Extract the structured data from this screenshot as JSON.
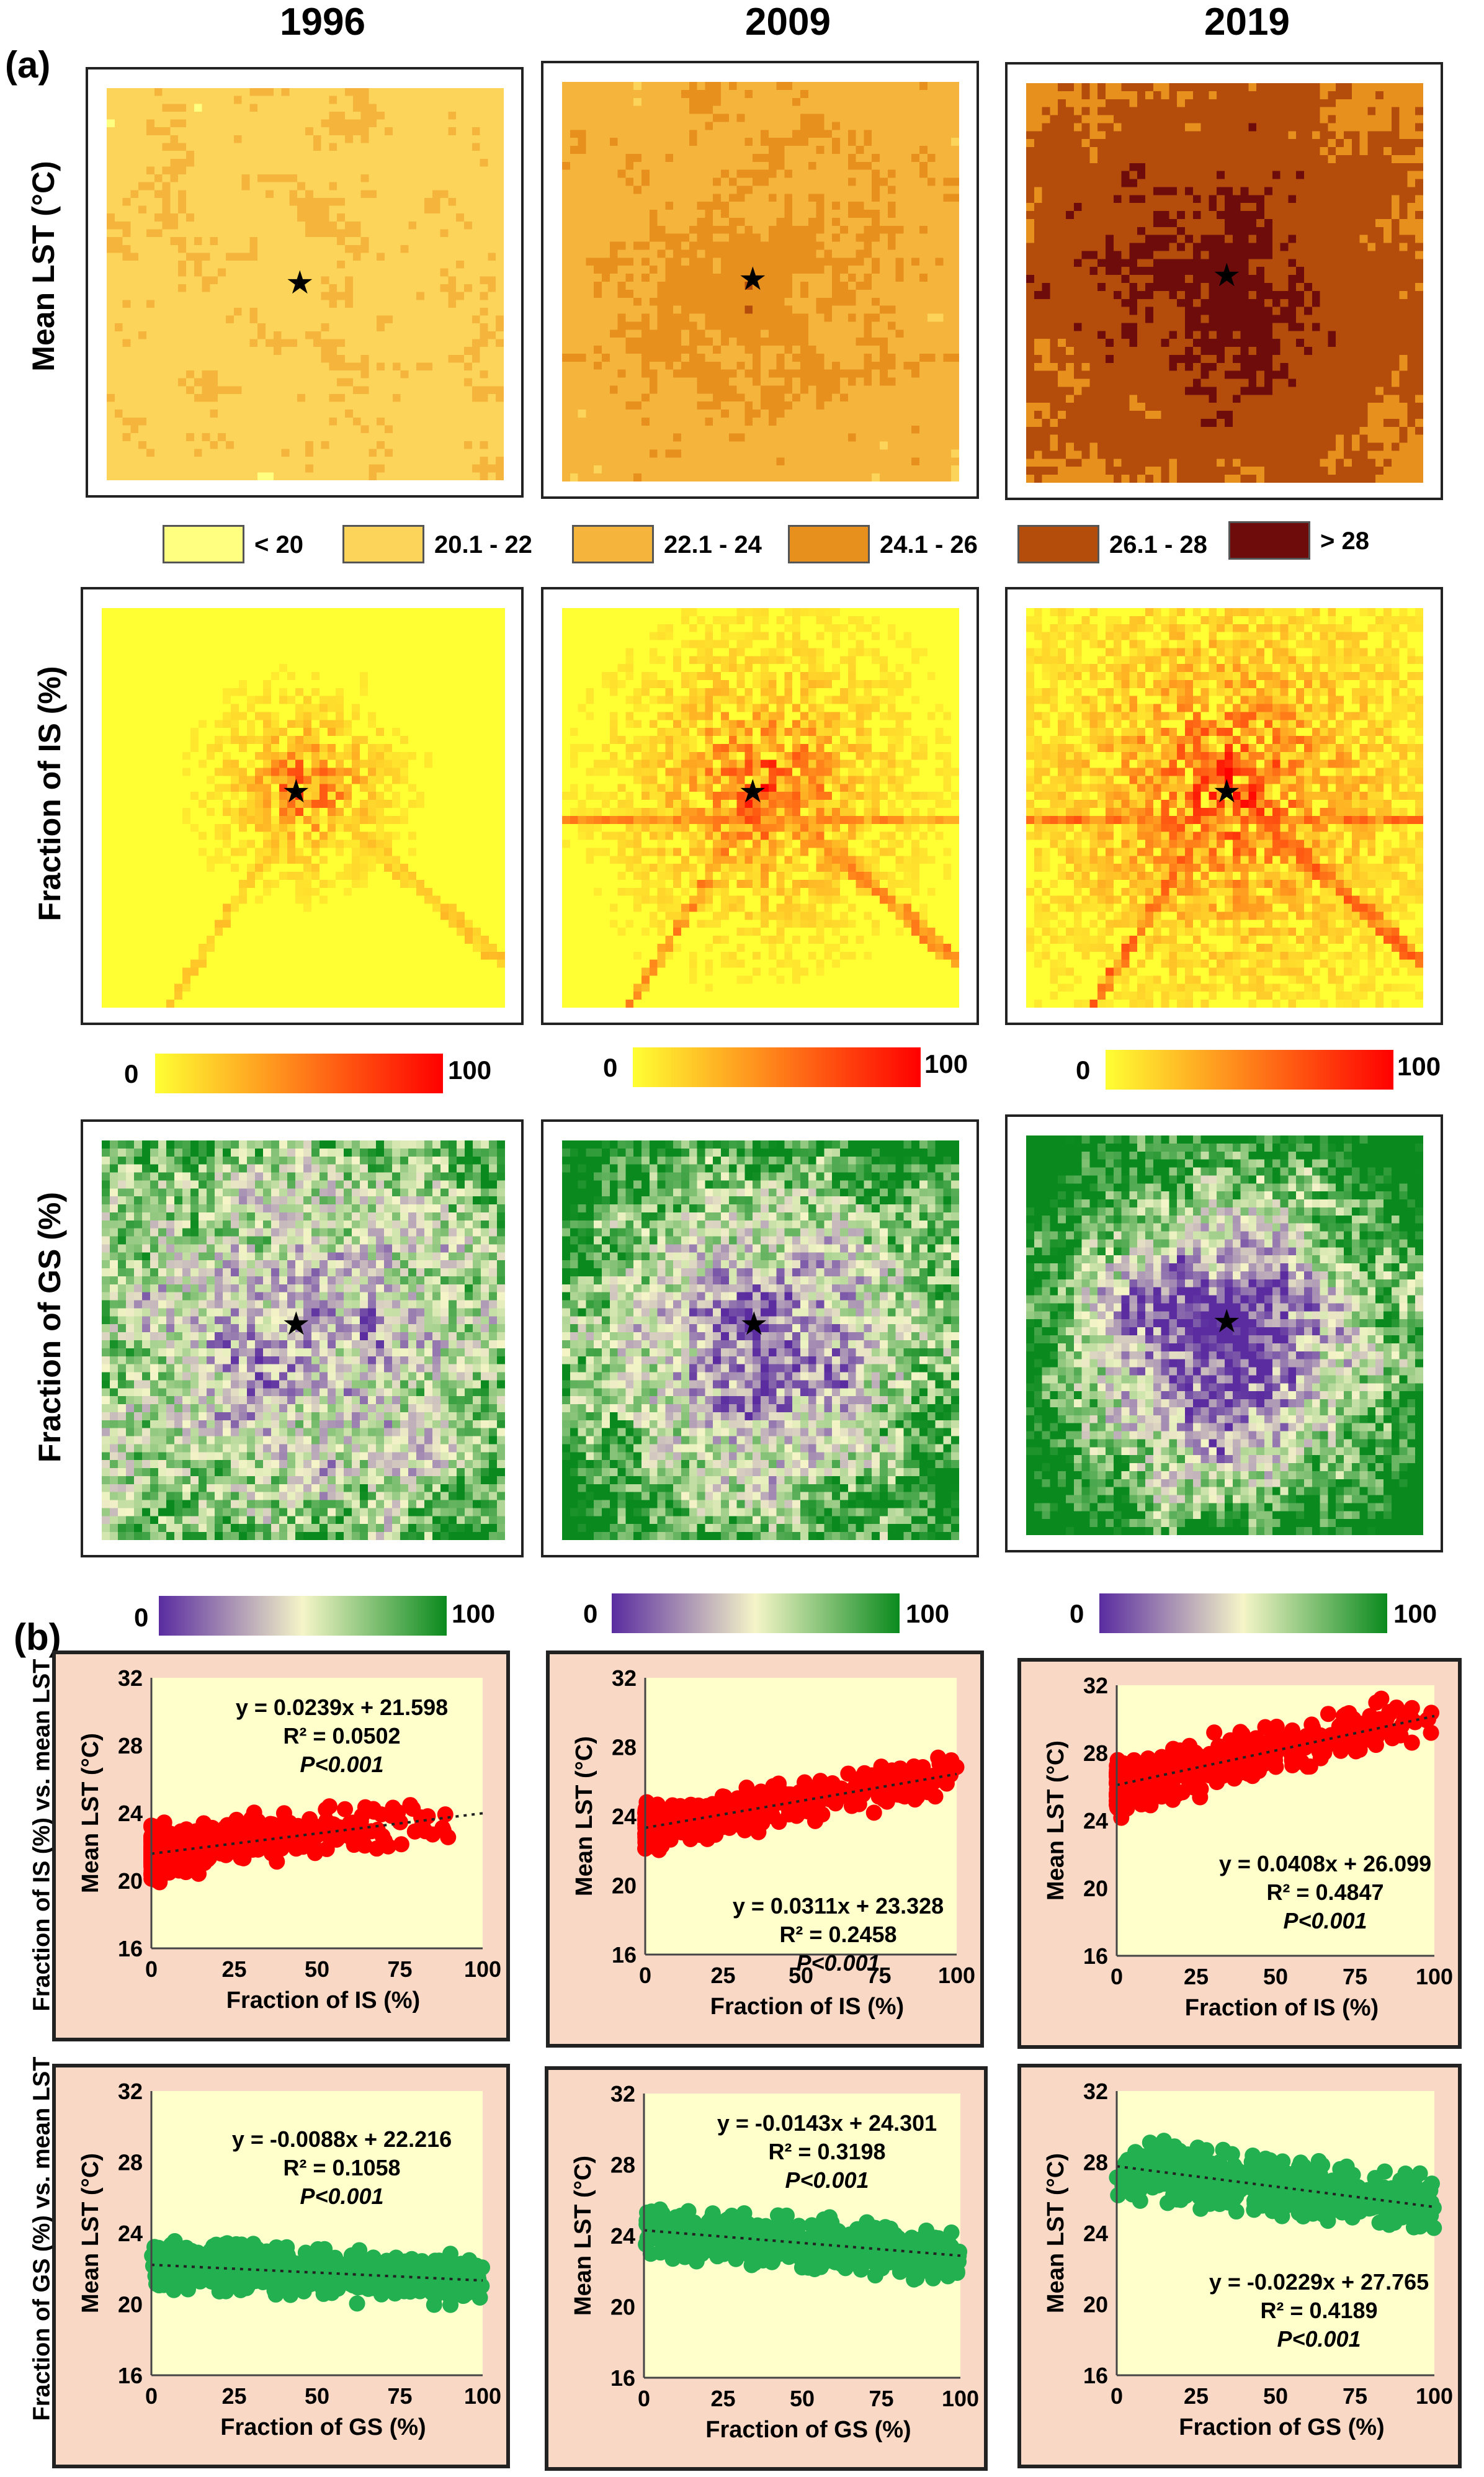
{
  "figure": {
    "years": [
      "1996",
      "2009",
      "2019"
    ],
    "panel_labels": [
      "(a)",
      "(b)"
    ],
    "row_labels": {
      "lst": "Mean LST (°C)",
      "is": "Fraction of IS (%)",
      "gs": "Fraction of GS (%)",
      "is_vs_lst": "Fraction of IS (%) vs. mean LST",
      "gs_vs_lst": "Fraction of GS (%) vs. mean LST"
    },
    "lst_legend": [
      {
        "label": "< 20",
        "color": "#ffff80"
      },
      {
        "label": "20.1 - 22",
        "color": "#fcd45a"
      },
      {
        "label": "22.1 - 24",
        "color": "#f5b43c"
      },
      {
        "label": "24.1 - 26",
        "color": "#e8901e"
      },
      {
        "label": "26.1 - 28",
        "color": "#b44c0c"
      },
      {
        "label": "> 28",
        "color": "#6e0c0c"
      }
    ],
    "is_ramp": {
      "min": "0",
      "max": "100",
      "colors": [
        "#ffff33",
        "#ff0000"
      ]
    },
    "gs_ramp": {
      "min": "0",
      "max": "100",
      "colors": [
        "#5a2ca0",
        "#f5f5c8",
        "#0a8a1e"
      ]
    },
    "star_glyph": "★"
  },
  "chart_data": [
    {
      "type": "scatter",
      "id": "is-1996",
      "series_color": "#ff0000",
      "background": "#ffffcc",
      "frame": "#f9d9c6",
      "xlabel": "Fraction of IS (%)",
      "ylabel": "Mean LST (°C)",
      "xlim": [
        0,
        100
      ],
      "ylim": [
        16,
        32
      ],
      "xticks": [
        "0",
        "25",
        "50",
        "75",
        "100"
      ],
      "yticks": [
        "16",
        "20",
        "24",
        "28",
        "32"
      ],
      "equation": "y = 0.0239x + 21.598",
      "r2": "R² = 0.0502",
      "p": "P<0.001",
      "trend": {
        "slope": 0.0239,
        "intercept": 21.598
      },
      "x_max_data": 90,
      "spread": 1.1
    },
    {
      "type": "scatter",
      "id": "is-2009",
      "series_color": "#ff0000",
      "background": "#ffffcc",
      "frame": "#f9d9c6",
      "xlabel": "Fraction of IS (%)",
      "ylabel": "Mean LST (°C)",
      "xlim": [
        0,
        100
      ],
      "ylim": [
        16,
        32
      ],
      "xticks": [
        "0",
        "25",
        "50",
        "75",
        "100"
      ],
      "yticks": [
        "16",
        "20",
        "24",
        "28",
        "32"
      ],
      "equation": "y = 0.0311x + 23.328",
      "r2": "R² = 0.2458",
      "p": "P<0.001",
      "trend": {
        "slope": 0.0311,
        "intercept": 23.328
      },
      "x_max_data": 100,
      "spread": 1.0
    },
    {
      "type": "scatter",
      "id": "is-2019",
      "series_color": "#ff0000",
      "background": "#ffffcc",
      "frame": "#f9d9c6",
      "xlabel": "Fraction of IS (%)",
      "ylabel": "Mean LST (°C)",
      "xlim": [
        0,
        100
      ],
      "ylim": [
        16,
        32
      ],
      "xticks": [
        "0",
        "25",
        "50",
        "75",
        "100"
      ],
      "yticks": [
        "16",
        "20",
        "24",
        "28",
        "32"
      ],
      "equation": "y = 0.0408x + 26.099",
      "r2": "R² = 0.4847",
      "p": "P<0.001",
      "trend": {
        "slope": 0.0408,
        "intercept": 26.099
      },
      "x_max_data": 100,
      "spread": 1.2
    },
    {
      "type": "scatter",
      "id": "gs-1996",
      "series_color": "#22b050",
      "background": "#ffffcc",
      "frame": "#f9d9c6",
      "xlabel": "Fraction of GS (%)",
      "ylabel": "Mean LST (°C)",
      "xlim": [
        0,
        100
      ],
      "ylim": [
        16,
        32
      ],
      "xticks": [
        "0",
        "25",
        "50",
        "75",
        "100"
      ],
      "yticks": [
        "16",
        "20",
        "24",
        "28",
        "32"
      ],
      "equation": "y = -0.0088x + 22.216",
      "r2": "R² = 0.1058",
      "p": "P<0.001",
      "trend": {
        "slope": -0.0088,
        "intercept": 22.216
      },
      "x_max_data": 100,
      "spread": 1.0
    },
    {
      "type": "scatter",
      "id": "gs-2009",
      "series_color": "#22b050",
      "background": "#ffffcc",
      "frame": "#f9d9c6",
      "xlabel": "Fraction of GS (%)",
      "ylabel": "Mean LST (°C)",
      "xlim": [
        0,
        100
      ],
      "ylim": [
        16,
        32
      ],
      "xticks": [
        "0",
        "25",
        "50",
        "75",
        "100"
      ],
      "yticks": [
        "16",
        "20",
        "24",
        "28",
        "32"
      ],
      "equation": "y = -0.0143x + 24.301",
      "r2": "R² = 0.3198",
      "p": "P<0.001",
      "trend": {
        "slope": -0.0143,
        "intercept": 24.301
      },
      "x_max_data": 100,
      "spread": 1.0
    },
    {
      "type": "scatter",
      "id": "gs-2019",
      "series_color": "#22b050",
      "background": "#ffffcc",
      "frame": "#f9d9c6",
      "xlabel": "Fraction of GS (%)",
      "ylabel": "Mean LST (°C)",
      "xlim": [
        0,
        100
      ],
      "ylim": [
        16,
        32
      ],
      "xticks": [
        "0",
        "25",
        "50",
        "75",
        "100"
      ],
      "yticks": [
        "16",
        "20",
        "24",
        "28",
        "32"
      ],
      "equation": "y = -0.0229x + 27.765",
      "r2": "R² = 0.4189",
      "p": "P<0.001",
      "trend": {
        "slope": -0.0229,
        "intercept": 27.765
      },
      "x_max_data": 100,
      "spread": 1.2
    }
  ]
}
